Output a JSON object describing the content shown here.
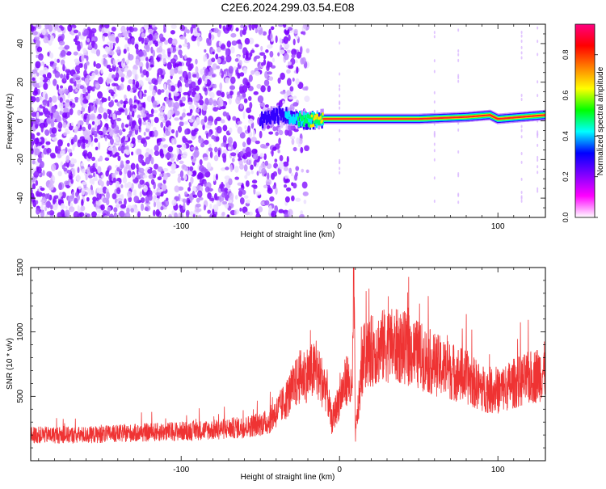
{
  "title": "C2E6.2024.299.03.54.E08",
  "chart_data": [
    {
      "type": "heatmap",
      "xlabel": "Height of straight line (km)",
      "ylabel": "Frequency (Hz)",
      "xlim": [
        -195,
        130
      ],
      "ylim": [
        -50,
        50
      ],
      "x_ticks": [
        -100,
        0,
        100
      ],
      "y_ticks": [
        -40,
        -20,
        0,
        20,
        40
      ],
      "colorbar": {
        "label": "Normalized spectral amplitude",
        "range": [
          0,
          0.95
        ],
        "ticks": [
          0.0,
          0.2,
          0.4,
          0.6,
          0.8
        ],
        "colors": [
          "#ffffff",
          "#ff00ff",
          "#7f00ff",
          "#0000ff",
          "#00ffff",
          "#00ff00",
          "#ffff00",
          "#ff8000",
          "#ff0000",
          "#ff0080"
        ]
      },
      "description_points": {
        "noise_region_x": [
          -195,
          -20
        ],
        "signal_x": [
          -50,
          130
        ],
        "signal_frequency": [
          {
            "x": -50,
            "f": 0
          },
          {
            "x": -40,
            "f": 3
          },
          {
            "x": -30,
            "f": 2
          },
          {
            "x": -20,
            "f": 0
          },
          {
            "x": -10,
            "f": 1
          },
          {
            "x": 0,
            "f": 1
          },
          {
            "x": 20,
            "f": 1
          },
          {
            "x": 50,
            "f": 1
          },
          {
            "x": 80,
            "f": 2
          },
          {
            "x": 95,
            "f": 3
          },
          {
            "x": 100,
            "f": 1
          },
          {
            "x": 130,
            "f": 3
          }
        ]
      }
    },
    {
      "type": "line",
      "xlabel": "Height of straight line (km)",
      "ylabel": "SNR (10 * v/v)",
      "xlim": [
        -195,
        130
      ],
      "ylim": [
        0,
        1500
      ],
      "x_ticks": [
        -100,
        0,
        100
      ],
      "y_ticks": [
        500,
        1000,
        1500
      ],
      "line_color": "#ef3333",
      "series": [
        {
          "x": [
            -195,
            -160,
            -120,
            -80,
            -60,
            -45,
            -35,
            -25,
            -15,
            -8,
            -5,
            0,
            5,
            8,
            9,
            10,
            15,
            20,
            30,
            40,
            50,
            60,
            70,
            80,
            90,
            100,
            110,
            120,
            130
          ],
          "values": [
            200,
            200,
            220,
            240,
            260,
            300,
            450,
            650,
            700,
            550,
            300,
            480,
            650,
            500,
            1500,
            200,
            800,
            850,
            900,
            880,
            820,
            750,
            700,
            650,
            560,
            540,
            600,
            640,
            700
          ]
        }
      ]
    }
  ]
}
